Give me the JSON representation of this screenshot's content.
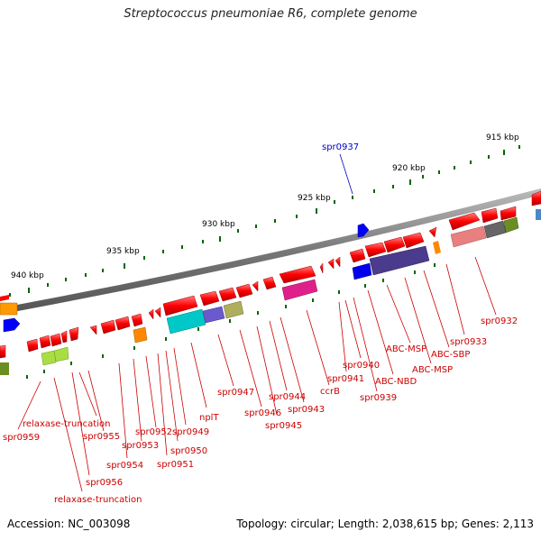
{
  "title": "Streptococcus pneumoniae R6, complete genome",
  "footer": {
    "accession": "Accession: NC_003098",
    "topology": "Topology: circular; Length: 2,038,615 bp; Genes: 2,113"
  },
  "colors": {
    "backbone": "#808080",
    "gene_forward": "#ff0000",
    "label_red": "#cc0000",
    "label_blue": "#0000cc",
    "tick": "#006600"
  },
  "ruler": [
    "915 kbp",
    "920 kbp",
    "925 kbp",
    "930 kbp",
    "935 kbp",
    "940 kbp"
  ],
  "gene_labels": [
    {
      "text": "spr0937",
      "color": "blue"
    },
    {
      "text": "spr0932",
      "color": "red"
    },
    {
      "text": "spr0933",
      "color": "red"
    },
    {
      "text": "ABC-SBP",
      "color": "red"
    },
    {
      "text": "ABC-MSP",
      "color": "red"
    },
    {
      "text": "ABC-MSP",
      "color": "red"
    },
    {
      "text": "ABC-NBD",
      "color": "red"
    },
    {
      "text": "spr0940",
      "color": "red"
    },
    {
      "text": "spr0941",
      "color": "red"
    },
    {
      "text": "spr0939",
      "color": "red"
    },
    {
      "text": "ccrB",
      "color": "red"
    },
    {
      "text": "spr0943",
      "color": "red"
    },
    {
      "text": "spr0944",
      "color": "red"
    },
    {
      "text": "spr0945",
      "color": "red"
    },
    {
      "text": "spr0946",
      "color": "red"
    },
    {
      "text": "spr0947",
      "color": "red"
    },
    {
      "text": "nplT",
      "color": "red"
    },
    {
      "text": "spr0949",
      "color": "red"
    },
    {
      "text": "spr0950",
      "color": "red"
    },
    {
      "text": "spr0951",
      "color": "red"
    },
    {
      "text": "spr0952",
      "color": "red"
    },
    {
      "text": "spr0953",
      "color": "red"
    },
    {
      "text": "spr0954",
      "color": "red"
    },
    {
      "text": "spr0955",
      "color": "red"
    },
    {
      "text": "relaxase-truncation",
      "color": "red"
    },
    {
      "text": "spr0959",
      "color": "red"
    },
    {
      "text": "spr0956",
      "color": "red"
    },
    {
      "text": "relaxase-truncation",
      "color": "red"
    }
  ]
}
